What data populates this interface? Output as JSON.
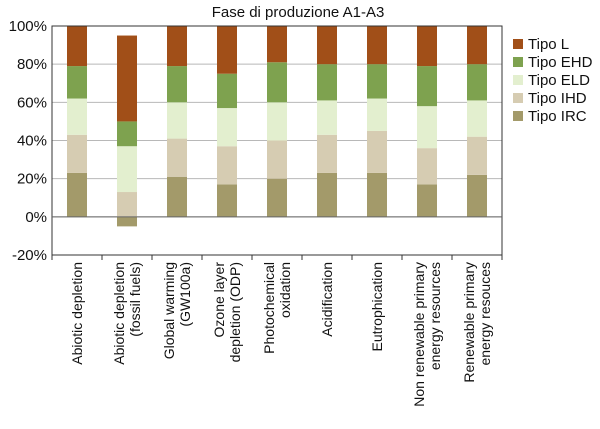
{
  "chart_data": {
    "type": "bar",
    "stacked": true,
    "title": "Fase di produzione A1-A3",
    "xlabel": "",
    "ylabel": "",
    "ylim": [
      -20,
      100
    ],
    "yticks": [
      "100%",
      "80%",
      "60%",
      "40%",
      "20%",
      "0%",
      "-20%"
    ],
    "ytick_values": [
      100,
      80,
      60,
      40,
      20,
      0,
      -20
    ],
    "grid": true,
    "legend_position": "right",
    "categories": [
      [
        "Abiotic depletion"
      ],
      [
        "Abiotic depletion",
        "(fossil fuels)"
      ],
      [
        "Global warming",
        "(GW100a)"
      ],
      [
        "Ozone layer",
        "depletion (ODP)"
      ],
      [
        "Photochemical",
        "oxidation"
      ],
      [
        "Acidification"
      ],
      [
        "Eutrophication"
      ],
      [
        "Non renewable primary",
        "energy resources"
      ],
      [
        "Renewable primary",
        "energy resouces"
      ]
    ],
    "series": [
      {
        "name": "Tipo IRC",
        "color": "#a39a6a",
        "values": [
          23,
          -5,
          21,
          17,
          20,
          23,
          23,
          17,
          22
        ]
      },
      {
        "name": "Tipo IHD",
        "color": "#d6ccb2",
        "values": [
          20,
          13,
          20,
          20,
          20,
          20,
          22,
          19,
          20
        ]
      },
      {
        "name": "Tipo ELD",
        "color": "#e3efcf",
        "values": [
          19,
          24,
          19,
          20,
          20,
          18,
          17,
          22,
          19
        ]
      },
      {
        "name": "Tipo EHD",
        "color": "#7ea24f",
        "values": [
          17,
          13,
          19,
          18,
          21,
          19,
          18,
          21,
          19
        ]
      },
      {
        "name": "Tipo L",
        "color": "#a14f18",
        "values": [
          21,
          45,
          21,
          25,
          19,
          20,
          20,
          21,
          20
        ]
      }
    ],
    "legend_order": [
      "Tipo L",
      "Tipo EHD",
      "Tipo ELD",
      "Tipo IHD",
      "Tipo IRC"
    ]
  }
}
